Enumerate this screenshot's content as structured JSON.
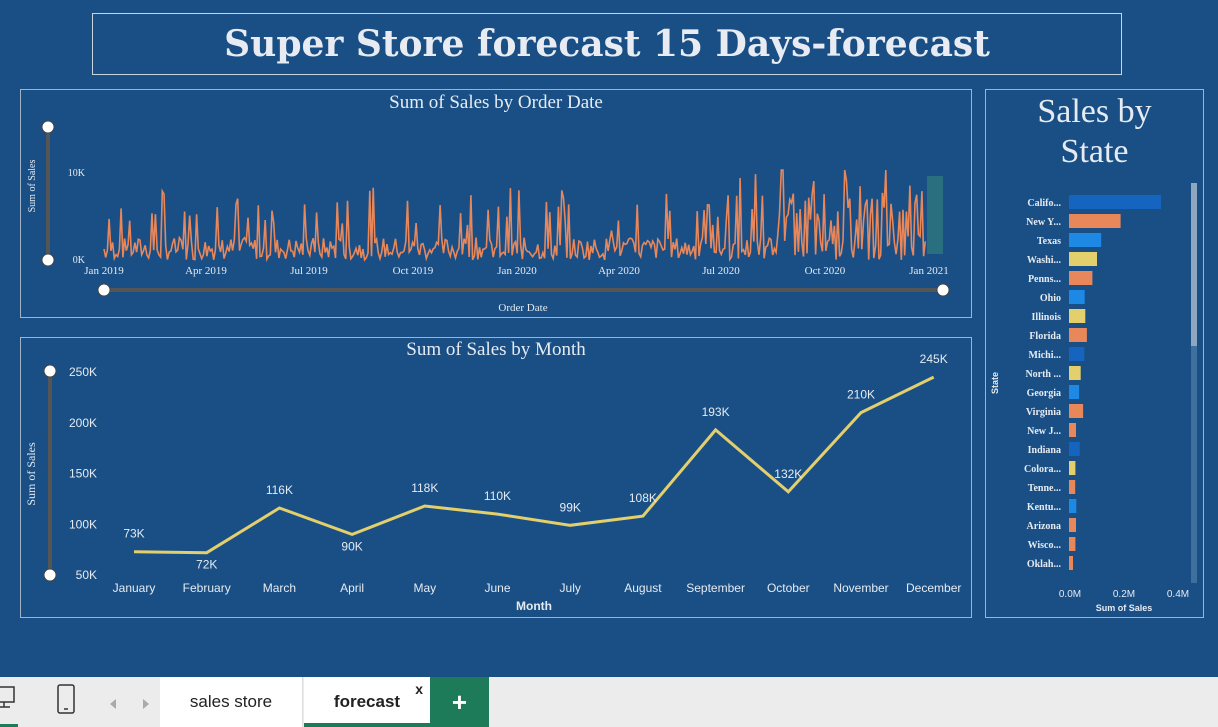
{
  "dashboard": {
    "title": "Super Store forecast 15 Days-forecast"
  },
  "order_date_chart": {
    "title": "Sum of Sales by Order Date",
    "ylabel": "Sum of Sales",
    "xlabel": "Order Date",
    "y_ticks": [
      "10K",
      "0K"
    ],
    "x_ticks": [
      "Jan 2019",
      "Apr 2019",
      "Jul 2019",
      "Oct 2019",
      "Jan 2020",
      "Apr 2020",
      "Jul 2020",
      "Oct 2020",
      "Jan 2021"
    ],
    "line_color": "#e8875a",
    "forecast_color": "#2a6f7f"
  },
  "month_chart": {
    "title": "Sum of Sales by Month",
    "ylabel": "Sum of Sales",
    "xlabel": "Month",
    "line_color": "#e3cf6b"
  },
  "state_chart": {
    "title_line1": "Sales by",
    "title_line2": "State",
    "ylabel": "State",
    "xlabel": "Sum of Sales",
    "x_ticks": [
      "0.0M",
      "0.2M",
      "0.4M"
    ]
  },
  "tabs": {
    "sheet1": "sales store",
    "sheet2": "forecast",
    "close": "x",
    "add": "+"
  },
  "chart_data": [
    {
      "type": "line",
      "title": "Sum of Sales by Month",
      "xlabel": "Month",
      "ylabel": "Sum of Sales",
      "categories": [
        "January",
        "February",
        "March",
        "April",
        "May",
        "June",
        "July",
        "August",
        "September",
        "October",
        "November",
        "December"
      ],
      "values": [
        73000,
        72000,
        116000,
        90000,
        118000,
        110000,
        99000,
        108000,
        193000,
        132000,
        210000,
        245000
      ],
      "data_labels": [
        "73K",
        "72K",
        "116K",
        "90K",
        "118K",
        "110K",
        "99K",
        "108K",
        "193K",
        "132K",
        "210K",
        "245K"
      ],
      "y_ticks": [
        "250K",
        "200K",
        "150K",
        "100K",
        "50K"
      ],
      "ylim": [
        50000,
        250000
      ]
    },
    {
      "type": "bar",
      "title": "Sales by State",
      "xlabel": "Sum of Sales",
      "ylabel": "State",
      "orientation": "horizontal",
      "categories": [
        "Califo...",
        "New Y...",
        "Texas",
        "Washi...",
        "Penns...",
        "Ohio",
        "Illinois",
        "Florida",
        "Michi...",
        "North ...",
        "Georgia",
        "Virginia",
        "New J...",
        "Indiana",
        "Colora...",
        "Tenne...",
        "Kentu...",
        "Arizona",
        "Wisco...",
        "Oklah..."
      ],
      "values": [
        0.457,
        0.256,
        0.16,
        0.139,
        0.116,
        0.078,
        0.081,
        0.089,
        0.076,
        0.058,
        0.05,
        0.07,
        0.035,
        0.053,
        0.032,
        0.031,
        0.036,
        0.035,
        0.032,
        0.02
      ],
      "colors": [
        "#1565c0",
        "#e8875a",
        "#1e88e5",
        "#e3cf6b",
        "#e8875a",
        "#1e88e5",
        "#e3cf6b",
        "#e8875a",
        "#1565c0",
        "#e3cf6b",
        "#1e88e5",
        "#e8875a",
        "#e8875a",
        "#1565c0",
        "#e3cf6b",
        "#e8875a",
        "#1e88e5",
        "#e8875a",
        "#e8875a",
        "#e8875a"
      ],
      "x_ticks": [
        "0.0M",
        "0.2M",
        "0.4M"
      ],
      "xlim": [
        0,
        0.45
      ]
    }
  ]
}
